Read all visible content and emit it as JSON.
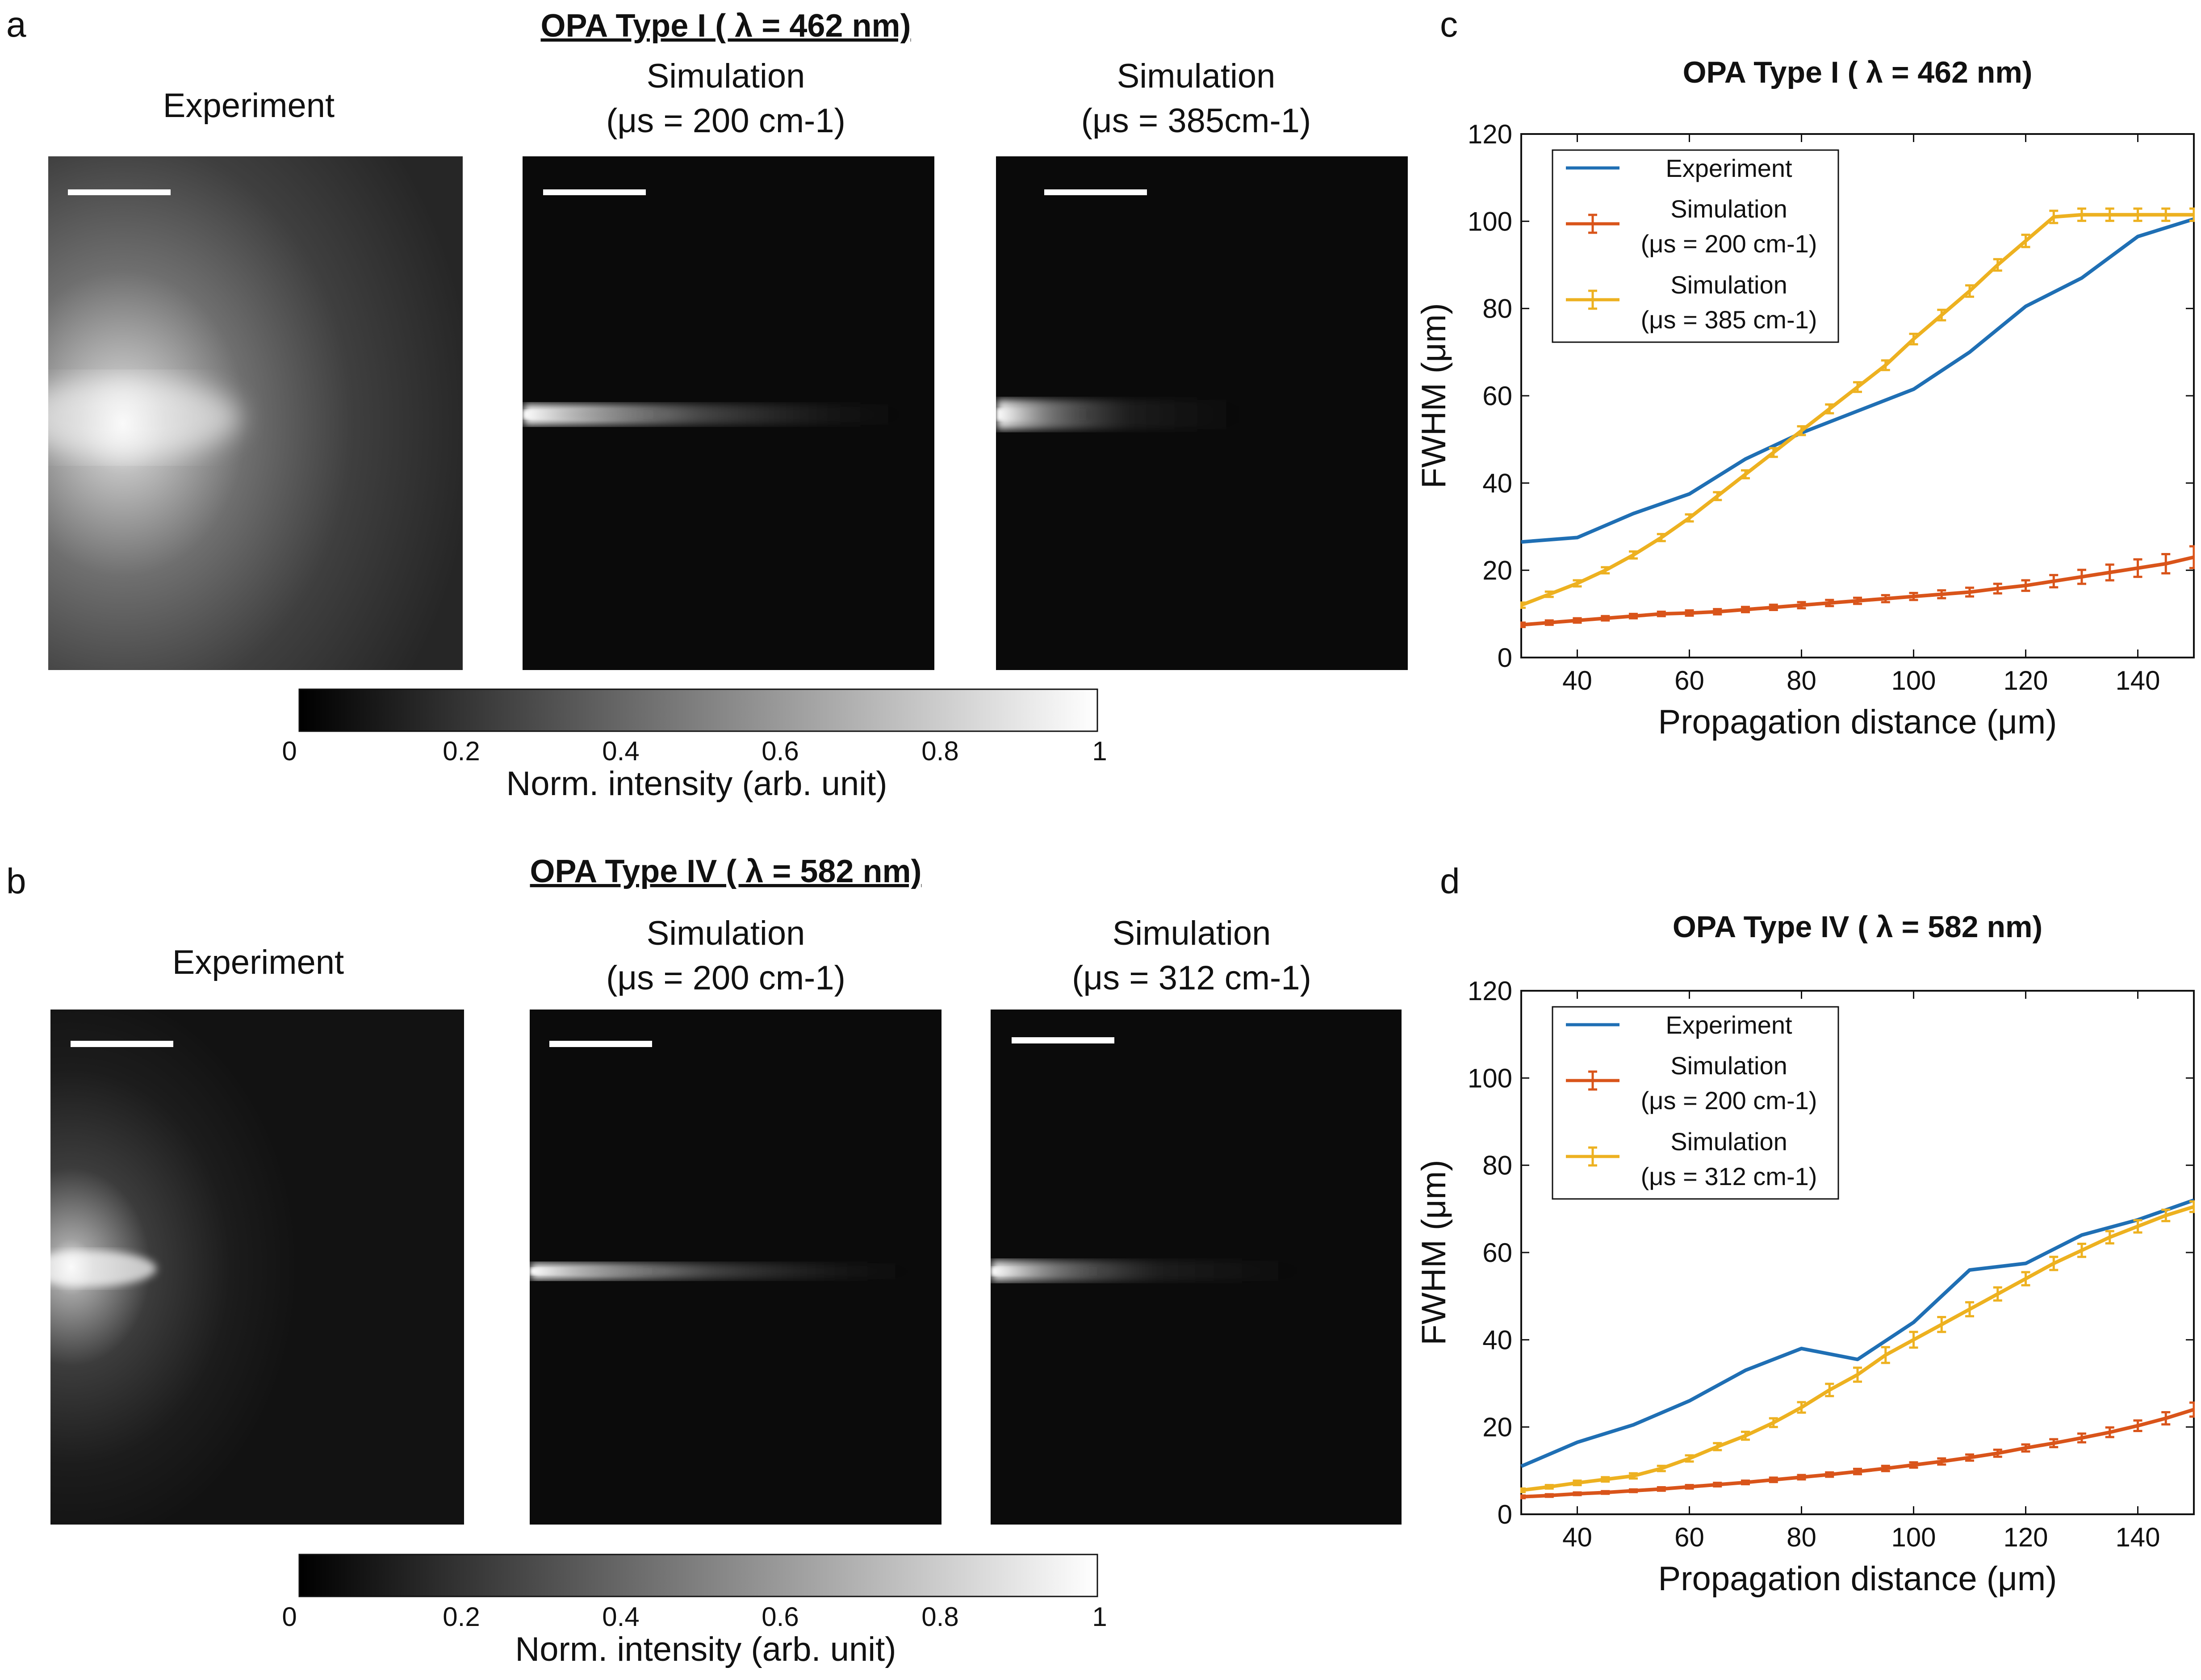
{
  "figure": {
    "panel_labels": {
      "a": "a",
      "b": "b",
      "c": "c",
      "d": "d"
    },
    "panel_a": {
      "title": "OPA Type I ( λ = 462 nm)",
      "images": [
        {
          "title_line1": "Experiment",
          "title_line2": ""
        },
        {
          "title_line1": "Simulation",
          "title_line2": "(μs = 200 cm-1)"
        },
        {
          "title_line1": "Simulation",
          "title_line2": "(μs = 385cm-1)"
        }
      ],
      "colorbar": {
        "ticks": [
          "0",
          "0.2",
          "0.4",
          "0.6",
          "0.8",
          "1"
        ],
        "label": "Norm. intensity (arb. unit)"
      }
    },
    "panel_b": {
      "title": "OPA Type IV ( λ = 582 nm)",
      "images": [
        {
          "title_line1": "Experiment",
          "title_line2": ""
        },
        {
          "title_line1": "Simulation",
          "title_line2": "(μs = 200 cm-1)"
        },
        {
          "title_line1": "Simulation",
          "title_line2": "(μs = 312 cm-1)"
        }
      ],
      "colorbar": {
        "ticks": [
          "0",
          "0.2",
          "0.4",
          "0.6",
          "0.8",
          "1"
        ],
        "label": "Norm. intensity (arb. unit)"
      }
    }
  },
  "chart_data": [
    {
      "type": "line",
      "title": "OPA Type I ( λ = 462 nm)",
      "xlabel": "Propagation distance (μm)",
      "ylabel": "FWHM (μm)",
      "xlim": [
        30,
        150
      ],
      "ylim": [
        0,
        120
      ],
      "xticks": [
        40,
        60,
        80,
        100,
        120,
        140
      ],
      "yticks": [
        0,
        20,
        40,
        60,
        80,
        100,
        120
      ],
      "legend_position": "top-left",
      "series": [
        {
          "name": "Experiment",
          "legend_line2": "",
          "color": "#1f6fb4",
          "errorbars": false,
          "x": [
            30,
            40,
            50,
            60,
            70,
            80,
            90,
            100,
            110,
            120,
            130,
            140,
            150
          ],
          "y": [
            26.5,
            27.5,
            33,
            37.5,
            45.5,
            51.5,
            56.5,
            61.5,
            70,
            80.5,
            87,
            96.5,
            100.5
          ]
        },
        {
          "name": "Simulation",
          "legend_line2": "(μs = 200 cm-1)",
          "color": "#d9541a",
          "errorbars": true,
          "x": [
            30,
            35,
            40,
            45,
            50,
            55,
            60,
            65,
            70,
            75,
            80,
            85,
            90,
            95,
            100,
            105,
            110,
            115,
            120,
            125,
            130,
            135,
            140,
            145,
            150
          ],
          "y": [
            7.5,
            8,
            8.5,
            9,
            9.5,
            10,
            10.2,
            10.5,
            11,
            11.5,
            12,
            12.5,
            13,
            13.5,
            14,
            14.5,
            15,
            15.8,
            16.5,
            17.5,
            18.5,
            19.5,
            20.5,
            21.5,
            23
          ],
          "err": [
            0.5,
            0.5,
            0.5,
            0.5,
            0.5,
            0.5,
            0.6,
            0.6,
            0.6,
            0.6,
            0.7,
            0.7,
            0.7,
            0.8,
            0.8,
            0.9,
            1,
            1.1,
            1.2,
            1.4,
            1.6,
            1.8,
            2,
            2.2,
            2.5
          ]
        },
        {
          "name": "Simulation",
          "legend_line2": "(μs = 385 cm-1)",
          "color": "#edb120",
          "errorbars": true,
          "x": [
            30,
            35,
            40,
            45,
            50,
            55,
            60,
            65,
            70,
            75,
            80,
            85,
            90,
            95,
            100,
            105,
            110,
            115,
            120,
            125,
            130,
            135,
            140,
            145,
            150
          ],
          "y": [
            12,
            14.5,
            17,
            20,
            23.5,
            27.5,
            32,
            37,
            42,
            47,
            52,
            57,
            62,
            67,
            73,
            78.5,
            84,
            90,
            95.5,
            101,
            101.5,
            101.5,
            101.5,
            101.5,
            101.5
          ],
          "err": [
            0.6,
            0.6,
            0.7,
            0.7,
            0.8,
            0.8,
            0.8,
            0.9,
            0.9,
            1,
            1,
            1,
            1.1,
            1.1,
            1.2,
            1.2,
            1.3,
            1.3,
            1.4,
            1.4,
            1.4,
            1.4,
            1.4,
            1.4,
            1.4
          ]
        }
      ]
    },
    {
      "type": "line",
      "title": "OPA Type IV ( λ = 582 nm)",
      "xlabel": "Propagation distance (μm)",
      "ylabel": "FWHM (μm)",
      "xlim": [
        30,
        150
      ],
      "ylim": [
        0,
        120
      ],
      "xticks": [
        40,
        60,
        80,
        100,
        120,
        140
      ],
      "yticks": [
        0,
        20,
        40,
        60,
        80,
        100,
        120
      ],
      "legend_position": "top-left",
      "series": [
        {
          "name": "Experiment",
          "legend_line2": "",
          "color": "#1f6fb4",
          "errorbars": false,
          "x": [
            30,
            40,
            50,
            60,
            70,
            80,
            90,
            100,
            110,
            120,
            130,
            140,
            150
          ],
          "y": [
            11,
            16.5,
            20.5,
            26,
            33,
            38,
            35.5,
            44,
            56,
            57.5,
            64,
            67.5,
            72
          ]
        },
        {
          "name": "Simulation",
          "legend_line2": "(μs = 200 cm-1)",
          "color": "#d9541a",
          "errorbars": true,
          "x": [
            30,
            35,
            40,
            45,
            50,
            55,
            60,
            65,
            70,
            75,
            80,
            85,
            90,
            95,
            100,
            105,
            110,
            115,
            120,
            125,
            130,
            135,
            140,
            145,
            150
          ],
          "y": [
            4,
            4.3,
            4.7,
            5,
            5.4,
            5.8,
            6.3,
            6.8,
            7.3,
            7.9,
            8.5,
            9.1,
            9.8,
            10.5,
            11.3,
            12.1,
            13,
            14,
            15.2,
            16.3,
            17.5,
            18.8,
            20.3,
            22,
            24
          ],
          "err": [
            0.3,
            0.3,
            0.3,
            0.3,
            0.3,
            0.4,
            0.4,
            0.4,
            0.4,
            0.5,
            0.5,
            0.5,
            0.6,
            0.6,
            0.6,
            0.7,
            0.7,
            0.8,
            0.8,
            0.9,
            1,
            1.1,
            1.2,
            1.4,
            1.6
          ]
        },
        {
          "name": "Simulation",
          "legend_line2": "(μs = 312 cm-1)",
          "color": "#edb120",
          "errorbars": true,
          "x": [
            30,
            35,
            40,
            45,
            50,
            55,
            60,
            65,
            70,
            75,
            80,
            85,
            90,
            95,
            100,
            105,
            110,
            115,
            120,
            125,
            130,
            135,
            140,
            145,
            150
          ],
          "y": [
            5.5,
            6.3,
            7.2,
            8,
            8.8,
            10.5,
            12.8,
            15.5,
            18,
            21,
            24.5,
            28.5,
            32,
            36.5,
            40,
            43.5,
            47,
            50.5,
            54,
            57.5,
            60.5,
            63.5,
            66,
            68.5,
            70.5
          ],
          "err": [
            0.4,
            0.4,
            0.5,
            0.5,
            0.6,
            0.6,
            0.7,
            0.8,
            0.9,
            1,
            1.2,
            1.4,
            1.6,
            1.8,
            1.8,
            1.7,
            1.6,
            1.5,
            1.5,
            1.5,
            1.5,
            1.4,
            1.4,
            1.3,
            1.2
          ]
        }
      ]
    }
  ]
}
